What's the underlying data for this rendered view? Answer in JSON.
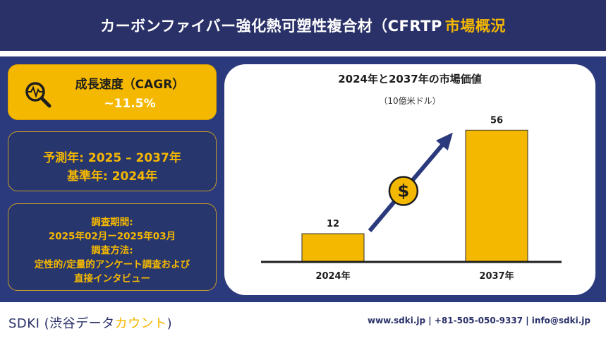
{
  "header": {
    "title_main": "カーボンファイバー強化熱可塑性複合材（CFRTP",
    "title_accent": "市場概況"
  },
  "cagr": {
    "title": "成長速度（CAGR）",
    "value": "~11.5%",
    "icon": "magnifier-pulse-icon"
  },
  "forecast": {
    "forecast_year": "予測年: 2025 – 2037年",
    "base_year": "基準年: 2024年"
  },
  "research": {
    "period_label": "調査期間:",
    "period_value": "2025年02月ー2025年03月",
    "method_label": "調査方法:",
    "method_value_1": "定性的/定量的アンケート調査および",
    "method_value_2": "直接インタビュー"
  },
  "chart_data": {
    "type": "bar",
    "title": "2024年と2037年の市場価値",
    "unit": "（10億米ドル）",
    "categories": [
      "2024年",
      "2037年"
    ],
    "values": [
      12,
      56
    ],
    "ylim": [
      0,
      60
    ],
    "grid": false,
    "bar_color": "#f5b800",
    "arrow_color": "#2b3a7c",
    "coin_icon": "dollar-coin-icon"
  },
  "footer": {
    "brand_main": "SDKI (渋谷データ",
    "brand_accent": "カウント",
    "brand_end": ")",
    "contact": "www.sdki.jp  | +81-505-050-9337  | info@sdki.jp"
  },
  "colors": {
    "navy": "#2a3168",
    "panel": "#2b3a7c",
    "accent": "#f5b800"
  }
}
